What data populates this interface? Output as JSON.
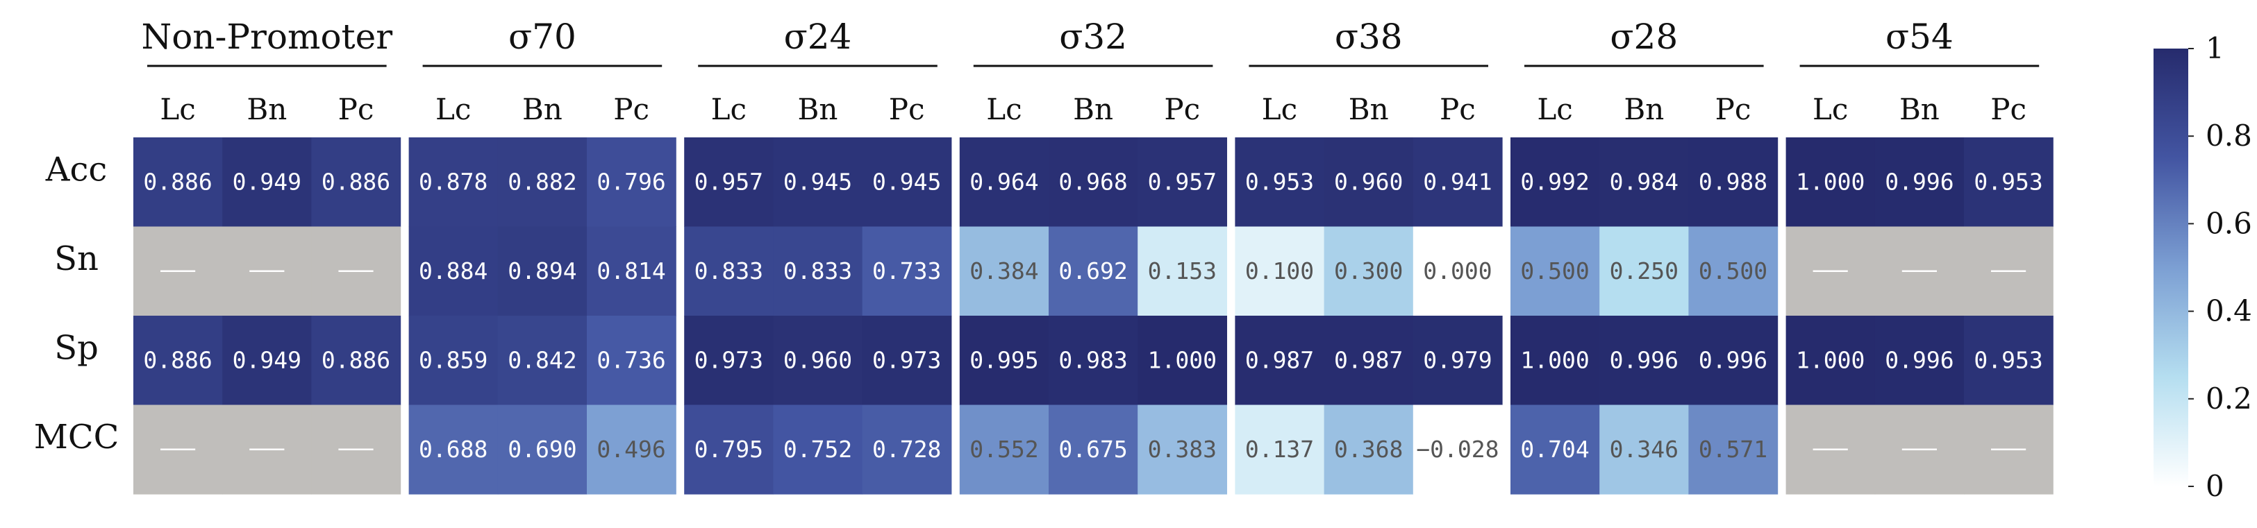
{
  "chart_data": {
    "type": "heatmap",
    "title": "",
    "groups": [
      {
        "name": "Non-Promoter",
        "columns": [
          "Lc",
          "Bn",
          "Pc"
        ],
        "values": [
          [
            0.886,
            0.949,
            0.886
          ],
          [
            null,
            null,
            null
          ],
          [
            0.886,
            0.949,
            0.886
          ],
          [
            null,
            null,
            null
          ]
        ],
        "labels": [
          [
            "0.886",
            "0.949",
            "0.886"
          ],
          [
            "—",
            "—",
            "—"
          ],
          [
            "0.886",
            "0.949",
            "0.886"
          ],
          [
            "—",
            "—",
            "—"
          ]
        ]
      },
      {
        "name": "σ70",
        "columns": [
          "Lc",
          "Bn",
          "Pc"
        ],
        "values": [
          [
            0.878,
            0.882,
            0.796
          ],
          [
            0.884,
            0.894,
            0.814
          ],
          [
            0.859,
            0.842,
            0.736
          ],
          [
            0.688,
            0.69,
            0.496
          ]
        ],
        "labels": [
          [
            "0.878",
            "0.882",
            "0.796"
          ],
          [
            "0.884",
            "0.894",
            "0.814"
          ],
          [
            "0.859",
            "0.842",
            "0.736"
          ],
          [
            "0.688",
            "0.690",
            "0.496"
          ]
        ]
      },
      {
        "name": "σ24",
        "columns": [
          "Lc",
          "Bn",
          "Pc"
        ],
        "values": [
          [
            0.957,
            0.945,
            0.945
          ],
          [
            0.833,
            0.833,
            0.733
          ],
          [
            0.973,
            0.96,
            0.973
          ],
          [
            0.795,
            0.752,
            0.728
          ]
        ],
        "labels": [
          [
            "0.957",
            "0.945",
            "0.945"
          ],
          [
            "0.833",
            "0.833",
            "0.733"
          ],
          [
            "0.973",
            "0.960",
            "0.973"
          ],
          [
            "0.795",
            "0.752",
            "0.728"
          ]
        ]
      },
      {
        "name": "σ32",
        "columns": [
          "Lc",
          "Bn",
          "Pc"
        ],
        "values": [
          [
            0.964,
            0.968,
            0.957
          ],
          [
            0.384,
            0.692,
            0.153
          ],
          [
            0.995,
            0.983,
            1.0
          ],
          [
            0.552,
            0.675,
            0.383
          ]
        ],
        "labels": [
          [
            "0.964",
            "0.968",
            "0.957"
          ],
          [
            "0.384",
            "0.692",
            "0.153"
          ],
          [
            "0.995",
            "0.983",
            "1.000"
          ],
          [
            "0.552",
            "0.675",
            "0.383"
          ]
        ]
      },
      {
        "name": "σ38",
        "columns": [
          "Lc",
          "Bn",
          "Pc"
        ],
        "values": [
          [
            0.953,
            0.96,
            0.941
          ],
          [
            0.1,
            0.3,
            0.0
          ],
          [
            0.987,
            0.987,
            0.979
          ],
          [
            0.137,
            0.368,
            -0.028
          ]
        ],
        "labels": [
          [
            "0.953",
            "0.960",
            "0.941"
          ],
          [
            "0.100",
            "0.300",
            "0.000"
          ],
          [
            "0.987",
            "0.987",
            "0.979"
          ],
          [
            "0.137",
            "0.368",
            "−0.028"
          ]
        ]
      },
      {
        "name": "σ28",
        "columns": [
          "Lc",
          "Bn",
          "Pc"
        ],
        "values": [
          [
            0.992,
            0.984,
            0.988
          ],
          [
            0.5,
            0.25,
            0.5
          ],
          [
            1.0,
            0.996,
            0.996
          ],
          [
            0.704,
            0.346,
            0.571
          ]
        ],
        "labels": [
          [
            "0.992",
            "0.984",
            "0.988"
          ],
          [
            "0.500",
            "0.250",
            "0.500"
          ],
          [
            "1.000",
            "0.996",
            "0.996"
          ],
          [
            "0.704",
            "0.346",
            "0.571"
          ]
        ]
      },
      {
        "name": "σ54",
        "columns": [
          "Lc",
          "Bn",
          "Pc"
        ],
        "values": [
          [
            1.0,
            0.996,
            0.953
          ],
          [
            null,
            null,
            null
          ],
          [
            1.0,
            0.996,
            0.953
          ],
          [
            null,
            null,
            null
          ]
        ],
        "labels": [
          [
            "1.000",
            "0.996",
            "0.953"
          ],
          [
            "—",
            "—",
            "—"
          ],
          [
            "1.000",
            "0.996",
            "0.953"
          ],
          [
            "—",
            "—",
            "—"
          ]
        ]
      }
    ],
    "rows": [
      "Acc",
      "Sn",
      "Sp",
      "MCC"
    ],
    "colorbar": {
      "min": 0,
      "max": 1,
      "ticks": [
        "1",
        "0.8",
        "0.6",
        "0.4",
        "0.2",
        "0"
      ],
      "tick_values": [
        1,
        0.8,
        0.6,
        0.4,
        0.2,
        0
      ]
    },
    "colorscale": [
      "#ffffff",
      "#b5def0",
      "#7c9fd3",
      "#4355a2",
      "#262b6d"
    ],
    "missing_color": "#c0bebb",
    "text_colors": {
      "dark": "#ffffff",
      "light": "#555555"
    }
  }
}
